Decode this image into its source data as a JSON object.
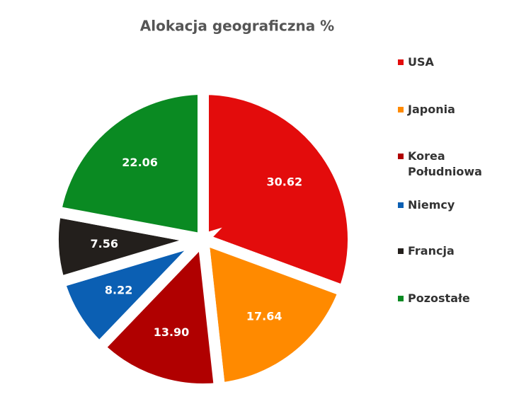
{
  "chart_data": {
    "type": "pie",
    "title": "Alokacja geograficzna %",
    "categories": [
      "USA",
      "Japonia",
      "Korea Południowa",
      "Niemcy",
      "Francja",
      "Pozostałe"
    ],
    "values": [
      30.62,
      17.64,
      13.9,
      8.22,
      7.56,
      22.06
    ],
    "value_labels": [
      "30.62",
      "17.64",
      "13.90",
      "8.22",
      "7.56",
      "22.06"
    ],
    "colors": [
      "#e30c0c",
      "#ff8a00",
      "#b00000",
      "#0b5fb3",
      "#231f1c",
      "#0a8a22"
    ],
    "legend": "right"
  }
}
